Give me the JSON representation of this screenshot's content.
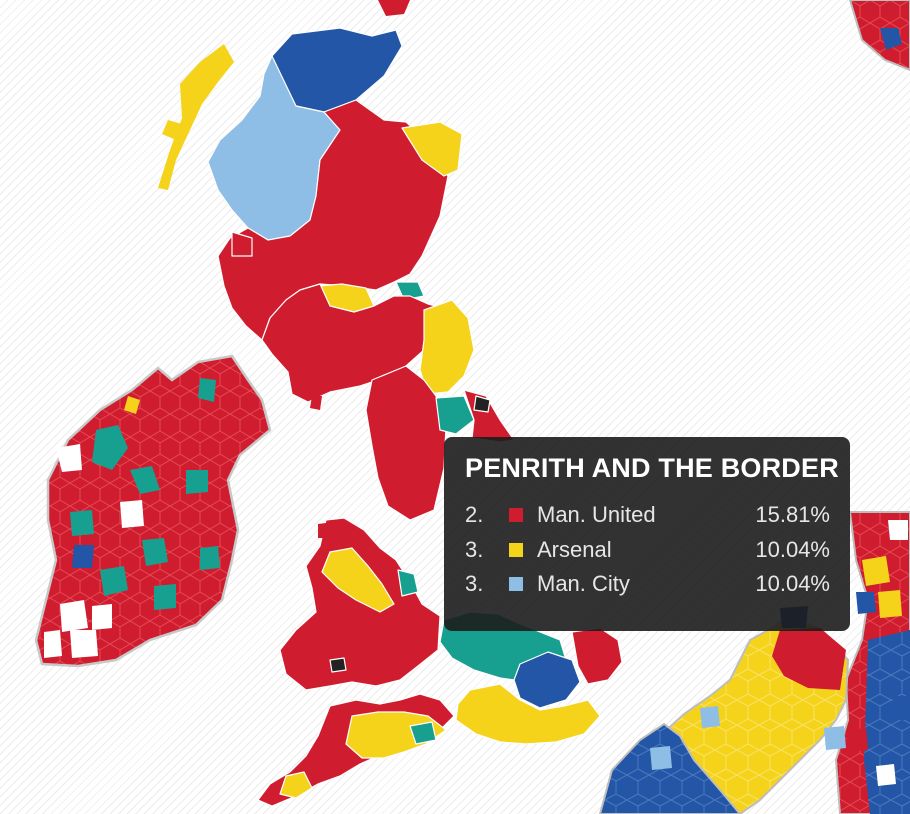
{
  "colors": {
    "man_united": "#d01c2f",
    "arsenal": "#f5d31a",
    "man_city": "#8ebde6",
    "chelsea": "#2356a6",
    "celtic": "#17a08f",
    "other": "#ffffff",
    "newcastle": "#222222"
  },
  "tooltip": {
    "title": "PENRITH AND THE BORDER",
    "rows": [
      {
        "rank": "2.",
        "team": "Man. United",
        "percent": "15.81%",
        "color": "#d01c2f"
      },
      {
        "rank": "3.",
        "team": "Arsenal",
        "percent": "10.04%",
        "color": "#f5d31a"
      },
      {
        "rank": "3.",
        "team": "Man. City",
        "percent": "10.04%",
        "color": "#8ebde6"
      }
    ]
  }
}
